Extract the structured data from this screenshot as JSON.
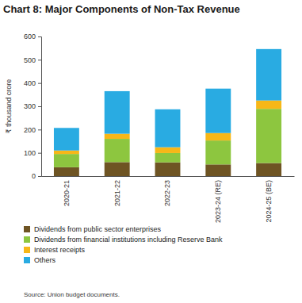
{
  "chart_data": {
    "type": "bar",
    "stacked": true,
    "title": "Chart 8: Major Components of Non-Tax Revenue",
    "y_label": "₹ thousand crore",
    "source": "Source: Union budget documents.",
    "categories": [
      "2020-21",
      "2021-22",
      "2022-23",
      "2023-24 (RE)",
      "2024-25 (BE)"
    ],
    "series": [
      {
        "name": "Dividends from public sector enterprises",
        "color": "#6e5423",
        "values": [
          38,
          60,
          59,
          50,
          56
        ]
      },
      {
        "name": "Dividends from financial institutions including Reserve Bank",
        "color": "#8dc63f",
        "values": [
          57,
          100,
          40,
          103,
          233
        ]
      },
      {
        "name": "Interest receipts",
        "color": "#f7b718",
        "values": [
          15,
          22,
          25,
          32,
          36
        ]
      },
      {
        "name": "Others",
        "color": "#29abe2",
        "values": [
          97,
          183,
          163,
          191,
          221
        ]
      }
    ],
    "ylim": [
      0,
      600
    ],
    "yticks": [
      0,
      100,
      200,
      300,
      400,
      500,
      600
    ],
    "grid": false,
    "legend": "bottom"
  }
}
